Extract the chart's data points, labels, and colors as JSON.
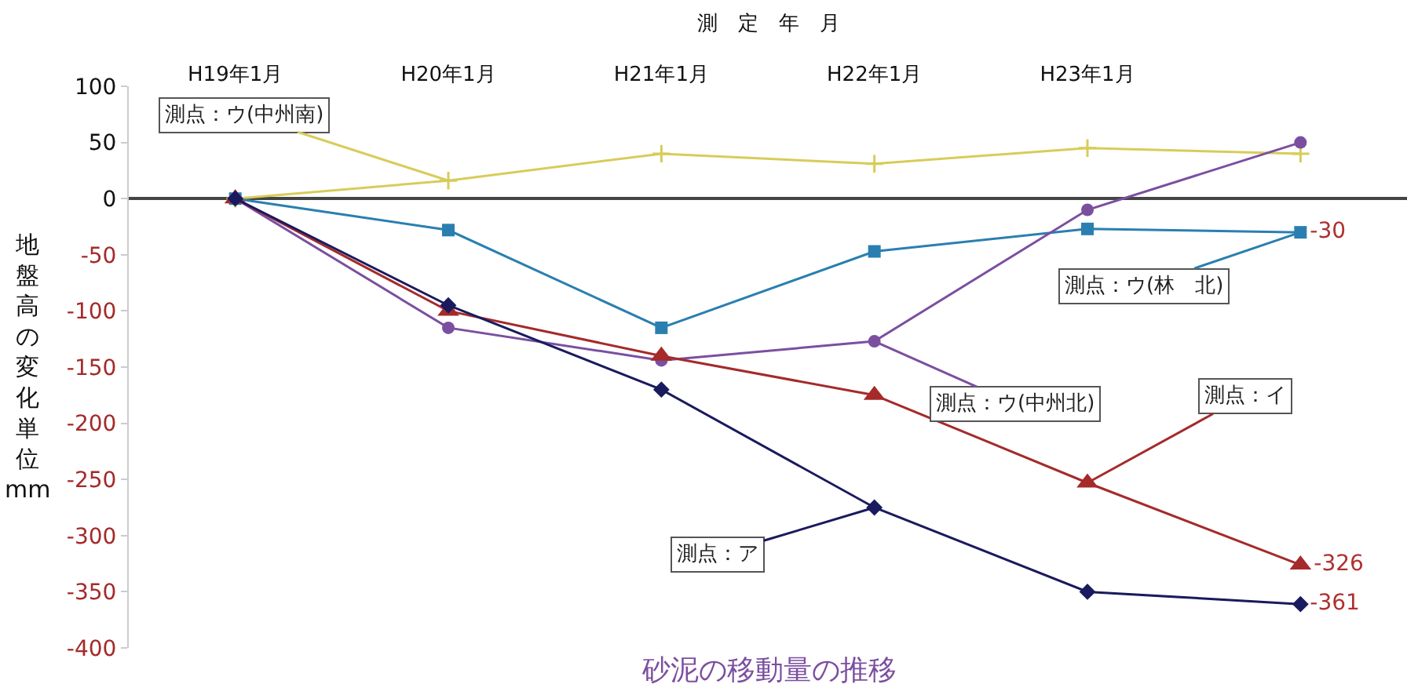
{
  "chart_data": {
    "type": "line",
    "xlabel": "測　定　年　月",
    "ylabel": "地盤高の変化単位mm",
    "annotations": [
      "砂泥の移動量の推移"
    ],
    "categories": [
      "H19年1月",
      "H20年1月",
      "H21年1月",
      "H22年1月",
      "H23年1月",
      null
    ],
    "ylim": [
      -400,
      100
    ],
    "yticks": [
      -400,
      -350,
      -300,
      -250,
      -200,
      -150,
      -100,
      -50,
      0,
      50,
      100
    ],
    "legend": false,
    "series": [
      {
        "name": "測点：ウ(中州南)",
        "color": "#d8cc5a",
        "marker": "cross",
        "values": [
          0,
          16,
          40,
          31,
          45,
          40
        ]
      },
      {
        "name": "測点：ウ(林　北)",
        "color": "#2a7fb0",
        "marker": "square",
        "values": [
          0,
          -28,
          -115,
          -47,
          -27,
          -30
        ],
        "value_labels": [
          null,
          null,
          null,
          null,
          null,
          "-30"
        ]
      },
      {
        "name": "測点：ウ(中州北)",
        "color": "#7b4fa0",
        "marker": "circle",
        "values": [
          0,
          -115,
          -144,
          -127,
          -10,
          50
        ]
      },
      {
        "name": "測点：イ",
        "color": "#a52a2a",
        "marker": "triangle",
        "values": [
          0,
          -100,
          -140,
          -175,
          -253,
          -326
        ],
        "value_labels": [
          null,
          null,
          null,
          null,
          null,
          "-326"
        ]
      },
      {
        "name": "測点：ア",
        "color": "#1a1a5e",
        "marker": "diamond",
        "values": [
          0,
          -95,
          -170,
          -275,
          -350,
          -361
        ],
        "value_labels": [
          null,
          null,
          null,
          null,
          null,
          "-361"
        ]
      }
    ]
  }
}
